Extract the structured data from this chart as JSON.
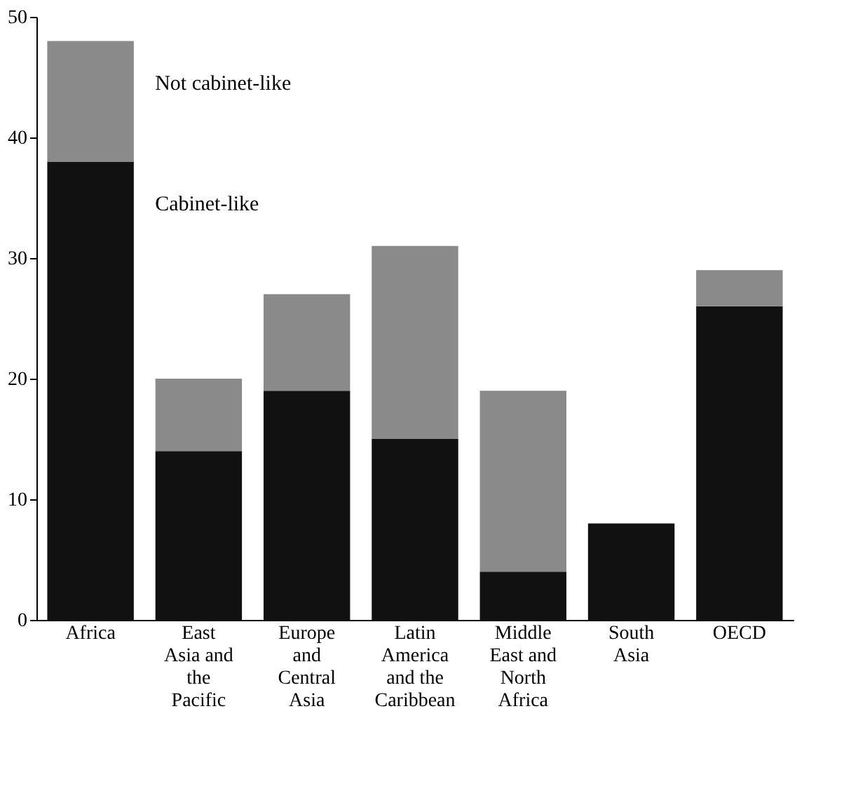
{
  "chart_data": {
    "type": "bar",
    "stacked": true,
    "categories": [
      "Africa",
      "East Asia and the Pacific",
      "Europe and Central Asia",
      "Latin America and the Caribbean",
      "Middle East and North Africa",
      "South Asia",
      "OECD"
    ],
    "series": [
      {
        "name": "Cabinet-like",
        "color": "#111111",
        "values": [
          38,
          14,
          19,
          15,
          4,
          8,
          26
        ]
      },
      {
        "name": "Not cabinet-like",
        "color": "#8a8a8a",
        "values": [
          10,
          6,
          8,
          16,
          15,
          0,
          3
        ]
      }
    ],
    "ylim": [
      0,
      50
    ],
    "yticks": [
      0,
      10,
      20,
      30,
      40,
      50
    ],
    "grid": false,
    "legend": false
  }
}
